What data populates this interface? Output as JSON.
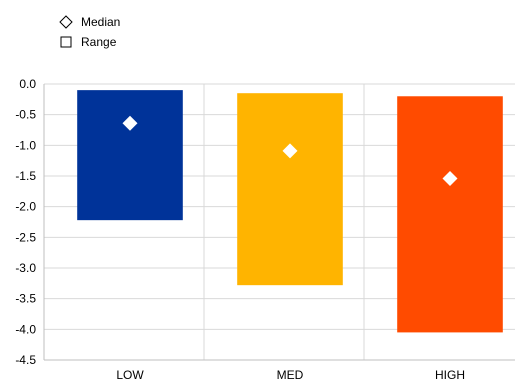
{
  "chart_data": {
    "type": "bar",
    "title": "",
    "xlabel": "",
    "ylabel": "",
    "categories": [
      "LOW",
      "MED",
      "HIGH"
    ],
    "ylim": [
      -4.5,
      0.0
    ],
    "yticks": [
      "0.0",
      "-0.5",
      "-1.0",
      "-1.5",
      "-2.0",
      "-2.5",
      "-3.0",
      "-3.5",
      "-4.0",
      "-4.5"
    ],
    "grid": true,
    "legend_position": "top-left",
    "series": [
      {
        "name": "Range",
        "kind": "floating-bar",
        "low": [
          -2.22,
          -3.28,
          -4.05
        ],
        "high": [
          -0.1,
          -0.15,
          -0.2
        ],
        "colors": [
          "#003399",
          "#FFB400",
          "#FF4B00"
        ]
      },
      {
        "name": "Median",
        "kind": "marker",
        "marker": "diamond",
        "values": [
          -0.64,
          -1.09,
          -1.54
        ],
        "color": "#ffffff"
      }
    ]
  }
}
